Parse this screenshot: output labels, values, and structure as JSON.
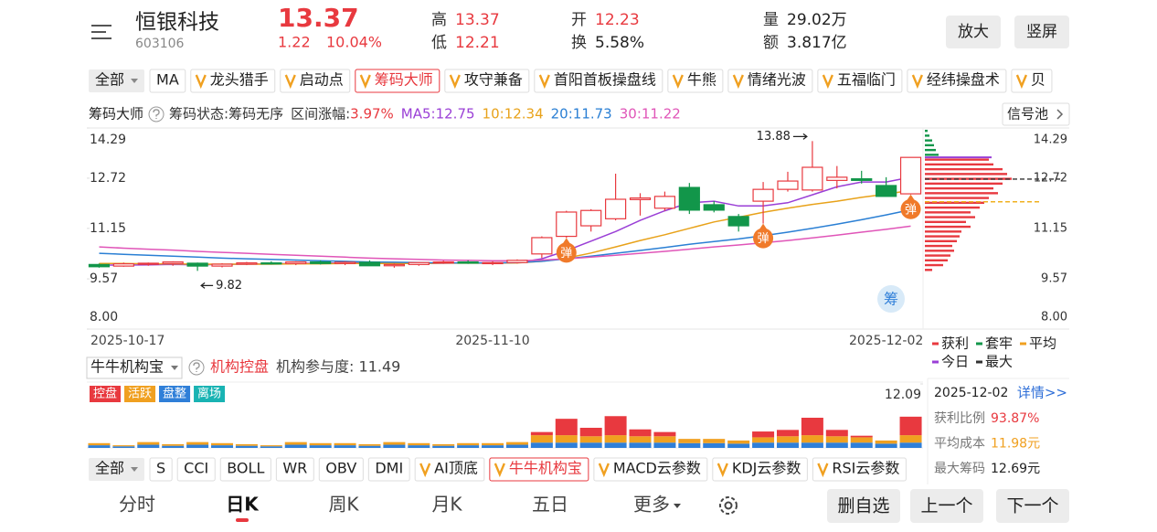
{
  "header": {
    "title": "恒银科技",
    "code": "603106",
    "price": "13.37",
    "change": "1.22",
    "change_pct": "10.04%",
    "stats": [
      {
        "label": "高",
        "value": "13.37"
      },
      {
        "label": "低",
        "value": "12.21"
      },
      {
        "label": "开",
        "value": "12.23"
      },
      {
        "label": "换",
        "value": "5.58%"
      },
      {
        "label": "量",
        "value": "29.02万"
      },
      {
        "label": "额",
        "value": "3.817亿"
      }
    ],
    "buttons": [
      "放大",
      "竖屏"
    ]
  },
  "indicator_tabs": {
    "all": "全部",
    "plain": [
      "MA"
    ],
    "items": [
      "龙头猎手",
      "启动点",
      "筹码大师",
      "攻守兼备",
      "首阳首板操盘线",
      "牛熊",
      "情绪光波",
      "五福临门",
      "经纬操盘术",
      "贝"
    ],
    "active": 2
  },
  "chart_info": {
    "title": "筹码大师",
    "state": "筹码状态:筹码无序",
    "range_label": "区间涨幅:",
    "range_value": "3.97%",
    "ma": [
      {
        "text": "MA5:12.75",
        "color": "#9a3fd6"
      },
      {
        "text": "10:12.34",
        "color": "#e8a21a"
      },
      {
        "text": "20:11.73",
        "color": "#2a7fd4"
      },
      {
        "text": "30:11.22",
        "color": "#e055b8"
      }
    ],
    "signal_pool": "信号池"
  },
  "chart_data": [
    {
      "type": "candlestick",
      "categories": [
        "2025-10-17",
        null,
        null,
        null,
        null,
        null,
        null,
        null,
        null,
        null,
        null,
        null,
        null,
        null,
        null,
        null,
        "2025-11-10",
        null,
        null,
        null,
        null,
        null,
        null,
        null,
        null,
        null,
        null,
        null,
        null,
        null,
        null,
        null,
        "2025-12-02",
        null
      ],
      "open": [
        10.02,
        9.97,
        10.03,
        10.05,
        10.06,
        9.97,
        10.03,
        10.07,
        10.05,
        10.1,
        10.05,
        10.09,
        9.98,
        10.02,
        10.08,
        10.1,
        10.06,
        10.08,
        10.35,
        10.9,
        11.23,
        11.45,
        12.05,
        11.78,
        12.43,
        11.89,
        11.52,
        12.0,
        12.37,
        12.35,
        12.65,
        12.7,
        12.49,
        12.23
      ],
      "high": [
        10.05,
        10.08,
        10.08,
        10.12,
        10.08,
        10.06,
        10.1,
        10.12,
        10.12,
        10.15,
        10.12,
        10.15,
        10.05,
        10.1,
        10.14,
        10.15,
        10.12,
        10.18,
        10.9,
        11.7,
        11.75,
        12.86,
        12.25,
        12.3,
        12.57,
        12.0,
        11.6,
        12.6,
        12.92,
        13.88,
        13.1,
        12.95,
        12.75,
        13.37
      ],
      "low": [
        9.92,
        9.95,
        9.98,
        9.98,
        9.82,
        9.93,
        10.0,
        10.02,
        10.0,
        10.02,
        10.0,
        9.98,
        9.92,
        9.98,
        10.04,
        10.04,
        10.0,
        10.05,
        10.22,
        10.85,
        11.05,
        11.4,
        11.55,
        11.7,
        11.6,
        11.65,
        11.05,
        11.3,
        12.3,
        12.3,
        12.4,
        12.55,
        12.15,
        12.21
      ],
      "close": [
        9.95,
        10.04,
        10.06,
        10.1,
        9.97,
        10.03,
        10.07,
        10.05,
        10.1,
        10.05,
        10.09,
        9.98,
        10.02,
        10.08,
        10.1,
        10.06,
        10.08,
        10.15,
        10.86,
        11.66,
        11.71,
        12.06,
        12.1,
        12.15,
        11.72,
        11.72,
        11.23,
        12.37,
        12.63,
        13.06,
        12.75,
        12.65,
        12.15,
        13.37
      ],
      "up_color": "#e8393f",
      "down_color": "#12964a",
      "series": [
        {
          "color": "#9a3fd6",
          "values": [
            10.0,
            10.0,
            10.01,
            10.02,
            10.01,
            10.02,
            10.03,
            10.04,
            10.05,
            10.06,
            10.07,
            10.06,
            10.05,
            10.05,
            10.06,
            10.07,
            10.07,
            10.08,
            10.2,
            10.45,
            10.75,
            11.05,
            11.4,
            11.7,
            11.95,
            12.0,
            11.85,
            11.85,
            11.95,
            12.2,
            12.45,
            12.6,
            12.6,
            12.75
          ]
        },
        {
          "color": "#e8a21a",
          "values": [
            10.05,
            10.05,
            10.04,
            10.04,
            10.03,
            10.03,
            10.03,
            10.03,
            10.04,
            10.04,
            10.05,
            10.05,
            10.05,
            10.05,
            10.06,
            10.06,
            10.06,
            10.07,
            10.12,
            10.22,
            10.38,
            10.57,
            10.77,
            10.95,
            11.15,
            11.35,
            11.5,
            11.65,
            11.78,
            11.9,
            12.0,
            12.12,
            12.22,
            12.34
          ]
        },
        {
          "color": "#2a7fd4",
          "values": [
            10.37,
            10.34,
            10.31,
            10.28,
            10.25,
            10.22,
            10.2,
            10.18,
            10.16,
            10.14,
            10.12,
            10.1,
            10.09,
            10.08,
            10.07,
            10.07,
            10.07,
            10.08,
            10.12,
            10.2,
            10.28,
            10.37,
            10.46,
            10.55,
            10.65,
            10.74,
            10.82,
            10.92,
            11.03,
            11.15,
            11.28,
            11.42,
            11.57,
            11.73
          ]
        },
        {
          "color": "#e055b8",
          "values": [
            10.57,
            10.53,
            10.5,
            10.47,
            10.43,
            10.4,
            10.37,
            10.34,
            10.31,
            10.28,
            10.25,
            10.22,
            10.2,
            10.18,
            10.16,
            10.15,
            10.14,
            10.14,
            10.16,
            10.2,
            10.25,
            10.31,
            10.37,
            10.43,
            10.5,
            10.57,
            10.63,
            10.7,
            10.77,
            10.85,
            10.94,
            11.03,
            11.12,
            11.22
          ]
        }
      ],
      "ylim": [
        8,
        14.29
      ],
      "yticks": [
        14.29,
        12.72,
        11.15,
        9.57,
        {
          "value": 8,
          "label": "8.00"
        }
      ],
      "high_label": "13.88",
      "low_label": "9.82",
      "signal": {
        "label": "弹",
        "at": [
          19,
          27,
          33
        ]
      },
      "badge": "筹",
      "chips": {
        "prices": [
          14.2,
          14.05,
          13.9,
          13.75,
          13.6,
          13.45,
          13.3,
          13.15,
          13.0,
          12.85,
          12.7,
          12.55,
          12.4,
          12.25,
          12.1,
          11.95,
          11.8,
          11.65,
          11.5,
          11.35,
          11.2,
          11.05,
          10.9,
          10.75,
          10.6,
          10.45,
          10.3,
          10.15,
          10.0,
          9.85
        ],
        "amounts": [
          3,
          5,
          8,
          10,
          12,
          15,
          70,
          75,
          85,
          90,
          95,
          85,
          75,
          80,
          70,
          65,
          60,
          50,
          55,
          45,
          50,
          40,
          38,
          35,
          30,
          32,
          28,
          25,
          20,
          8
        ],
        "profit_color": "#e8393f",
        "loss_color": "#12964a",
        "today": 13.37,
        "today_color": "#9a3fd6",
        "average": 11.98,
        "average_color": "#f0b020",
        "peak": 12.69,
        "peak_color": "#333333"
      }
    },
    {
      "type": "bar",
      "stacked": true,
      "series": [
        {
          "name": "控盘",
          "color": "#e8393f",
          "values": [
            0,
            0,
            0,
            0,
            0,
            0,
            0,
            0,
            0,
            0,
            0,
            0,
            0,
            0,
            0,
            0,
            0,
            0,
            0.6,
            3.1,
            1.6,
            3.6,
            1.3,
            0.8,
            0,
            0,
            0,
            1.1,
            1.2,
            3.3,
            1.2,
            0.3,
            0,
            3.5
          ]
        },
        {
          "name": "活跃",
          "color": "#f0a020",
          "values": [
            0.4,
            0.2,
            0.5,
            0.3,
            0.5,
            0.4,
            0.3,
            0.2,
            0.5,
            0.4,
            0.4,
            0.3,
            0.5,
            0.4,
            0.3,
            0.4,
            0.4,
            0.5,
            1.4,
            1.4,
            1.2,
            1.4,
            1.2,
            1.2,
            0.8,
            0.8,
            0.6,
            1.0,
            1.2,
            1.4,
            1.2,
            1.0,
            0.6,
            1.4
          ]
        },
        {
          "name": "盘整",
          "color": "#2f7fd8",
          "values": [
            0.5,
            0.3,
            0.6,
            0.4,
            0.6,
            0.5,
            0.4,
            0.3,
            0.6,
            0.5,
            0.5,
            0.4,
            0.6,
            0.5,
            0.4,
            0.5,
            0.5,
            0.6,
            1.0,
            1.0,
            1.0,
            1.0,
            1.0,
            1.0,
            0.9,
            0.9,
            0.8,
            1.0,
            1.0,
            1.0,
            1.0,
            1.0,
            0.8,
            1.0
          ]
        },
        {
          "name": "离场",
          "color": "#19b3b3",
          "values": [
            null,
            null,
            null,
            null,
            null,
            null,
            null,
            null,
            null,
            null,
            null,
            null,
            null,
            null,
            null,
            null,
            null,
            null,
            null,
            null,
            null,
            null,
            null,
            null,
            null,
            null,
            null,
            null,
            null,
            null,
            null,
            null,
            null,
            null
          ]
        }
      ],
      "ylim": [
        0,
        12.09
      ],
      "yticks": [
        12.09
      ]
    }
  ],
  "chip_panel": {
    "legend": [
      {
        "label": "获利",
        "color": "#e8393f"
      },
      {
        "label": "套牢",
        "color": "#12964a"
      },
      {
        "label": "平均",
        "color": "#f0a020"
      },
      {
        "label": "今日",
        "color": "#9a3fd6"
      },
      {
        "label": "最大",
        "color": "#333333"
      }
    ],
    "date": "2025-12-02",
    "detail": "详情>>",
    "rows": [
      {
        "label": "获利比例",
        "value": "93.87%",
        "color": "#e8393f"
      },
      {
        "label": "平均成本",
        "value": "11.98元",
        "color": "#f0a020"
      },
      {
        "label": "最大筹码",
        "value": "12.69元",
        "color": "#222222"
      }
    ]
  },
  "volume_info": {
    "selector": "牛牛机构宝",
    "status": "机构控盘",
    "participation": "机构参与度: 11.49"
  },
  "bottom_tabs": {
    "all": "全部",
    "items": [
      "S",
      "CCI",
      "BOLL",
      "WR",
      "OBV",
      "DMI"
    ],
    "v_items": [
      "AI顶底",
      "牛牛机构宝",
      "MACD云参数",
      "KDJ云参数",
      "RSI云参数"
    ],
    "active": 1
  },
  "nav": {
    "tabs": [
      "分时",
      "日K",
      "周K",
      "月K",
      "五日",
      "更多"
    ],
    "active": 1,
    "buttons": [
      "删自选",
      "上一个",
      "下一个"
    ]
  }
}
